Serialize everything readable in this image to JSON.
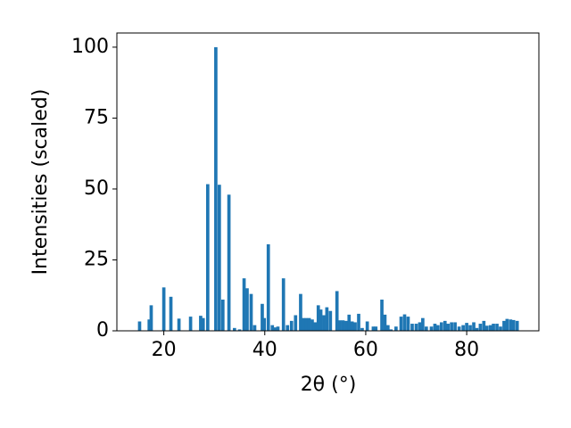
{
  "chart_data": {
    "type": "bar",
    "xlabel": "2θ (°)",
    "ylabel": "Intensities (scaled)",
    "color": "#1f77b4",
    "x": [
      15.2,
      17.1,
      17.5,
      20,
      21.4,
      23,
      25.3,
      27.3,
      27.8,
      28.7,
      30.3,
      31,
      31.7,
      32.9,
      34,
      35,
      35.9,
      36.5,
      37.3,
      38,
      39.5,
      39.9,
      40.7,
      41.5,
      42,
      42.6,
      43.7,
      44.5,
      45.3,
      46.1,
      47.1,
      47.6,
      48.2,
      48.8,
      49.4,
      50,
      50.6,
      51.1,
      51.7,
      52.3,
      53,
      54.3,
      54.9,
      55.5,
      56.1,
      56.7,
      57.3,
      57.9,
      58.6,
      59.3,
      60.3,
      61.5,
      62,
      63.2,
      63.8,
      64.4,
      65,
      66,
      67,
      67.7,
      68.4,
      69.2,
      70,
      70.7,
      71.3,
      72,
      73,
      73.7,
      74.3,
      75,
      75.7,
      76.3,
      77,
      77.7,
      78.5,
      79.3,
      80,
      80.7,
      81.4,
      82,
      82.7,
      83.4,
      84,
      84.7,
      85.3,
      86,
      86.7,
      87.4,
      88,
      88.7,
      89.3,
      90
    ],
    "values": [
      3.3,
      4,
      9,
      15.3,
      12,
      4.3,
      5,
      5.3,
      4.5,
      51.7,
      100,
      51.5,
      11,
      48,
      1,
      0.5,
      18.5,
      15,
      13,
      2,
      9.5,
      4.5,
      30.5,
      2,
      1.2,
      1.5,
      18.5,
      2,
      3.5,
      5.5,
      13,
      4.5,
      4.5,
      4.5,
      4,
      3,
      9,
      7.5,
      5.5,
      8.3,
      7,
      14,
      3.7,
      3.7,
      3.5,
      5.7,
      3.3,
      3,
      6,
      1,
      3.3,
      1.5,
      1.5,
      11,
      5.7,
      2,
      0.5,
      1.5,
      5,
      5.8,
      5,
      2.5,
      2.5,
      3,
      4.5,
      1.5,
      1.5,
      2.5,
      2,
      3,
      3.5,
      2.5,
      3,
      3,
      1.5,
      2,
      2.8,
      2,
      3,
      1,
      2.5,
      3.5,
      1.8,
      2,
      2.5,
      2.5,
      1.5,
      3.5,
      4.2,
      4,
      3.8,
      3.5
    ],
    "xlim": [
      10.7,
      94.3
    ],
    "xticks": [
      20,
      40,
      60,
      80
    ],
    "ylim": [
      0,
      105
    ],
    "yticks": [
      0,
      25,
      50,
      75,
      100
    ]
  }
}
